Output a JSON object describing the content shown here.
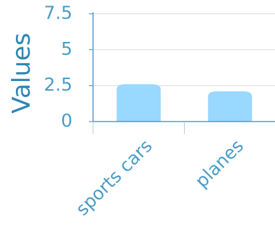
{
  "chart_data": {
    "type": "bar",
    "title": "",
    "xlabel": "",
    "ylabel": "Values",
    "categories": [
      "sports cars",
      "planes"
    ],
    "values": [
      2.6,
      2.1
    ],
    "ylim": [
      0,
      7.5
    ],
    "yticks": [
      "0",
      "2.5",
      "5",
      "7.5"
    ],
    "ytick_values": [
      0,
      2.5,
      5,
      7.5
    ],
    "grid": true,
    "bar_color": "#99D8FF",
    "axis_color": "#4A9CC7",
    "tick_label_color": "#4A9CC7",
    "ylabel_color": "#2E86B5",
    "grid_color": "#D9D9D9"
  }
}
